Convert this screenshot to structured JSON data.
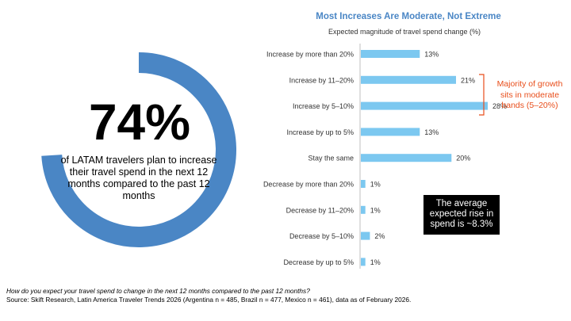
{
  "highlight": {
    "value": "74%",
    "description": "of LATAM travelers plan to increase their travel spend in the next 12 months compared to the past 12 months",
    "fraction": 0.74,
    "ring_color": "#4a86c5"
  },
  "chart_data": {
    "type": "bar",
    "orientation": "horizontal",
    "title": "Most Increases Are Moderate, Not Extreme",
    "subtitle": "Expected magnitude of travel spend change (%)",
    "categories": [
      "Increase by more than 20%",
      "Increase by 11–20%",
      "Increase by 5–10%",
      "Increase by up to 5%",
      "Stay the same",
      "Decrease by more than 20%",
      "Decrease by 11–20%",
      "Decrease by 5–10%",
      "Decrease by up to 5%"
    ],
    "values": [
      13,
      21,
      28,
      13,
      20,
      1,
      1,
      2,
      1
    ],
    "value_labels": [
      "13%",
      "21%",
      "28%",
      "13%",
      "20%",
      "1%",
      "1%",
      "2%",
      "1%"
    ],
    "xlim": [
      0,
      28
    ],
    "bar_color": "#7cc8f0",
    "grid": false
  },
  "callout": {
    "text": "Majority of growth sits in moderate bands (5–20%)",
    "color": "#e84e1b"
  },
  "average_box": {
    "text": "The average expected rise in spend is ~8.3%"
  },
  "footnote": {
    "question": "How do you expect your travel spend to change in the next 12 months compared to the past 12 months?",
    "source": "Source: Skift Research, Latin America Traveler Trends 2026 (Argentina n = 485, Brazil n = 477, Mexico n = 461), data as of February 2026."
  }
}
